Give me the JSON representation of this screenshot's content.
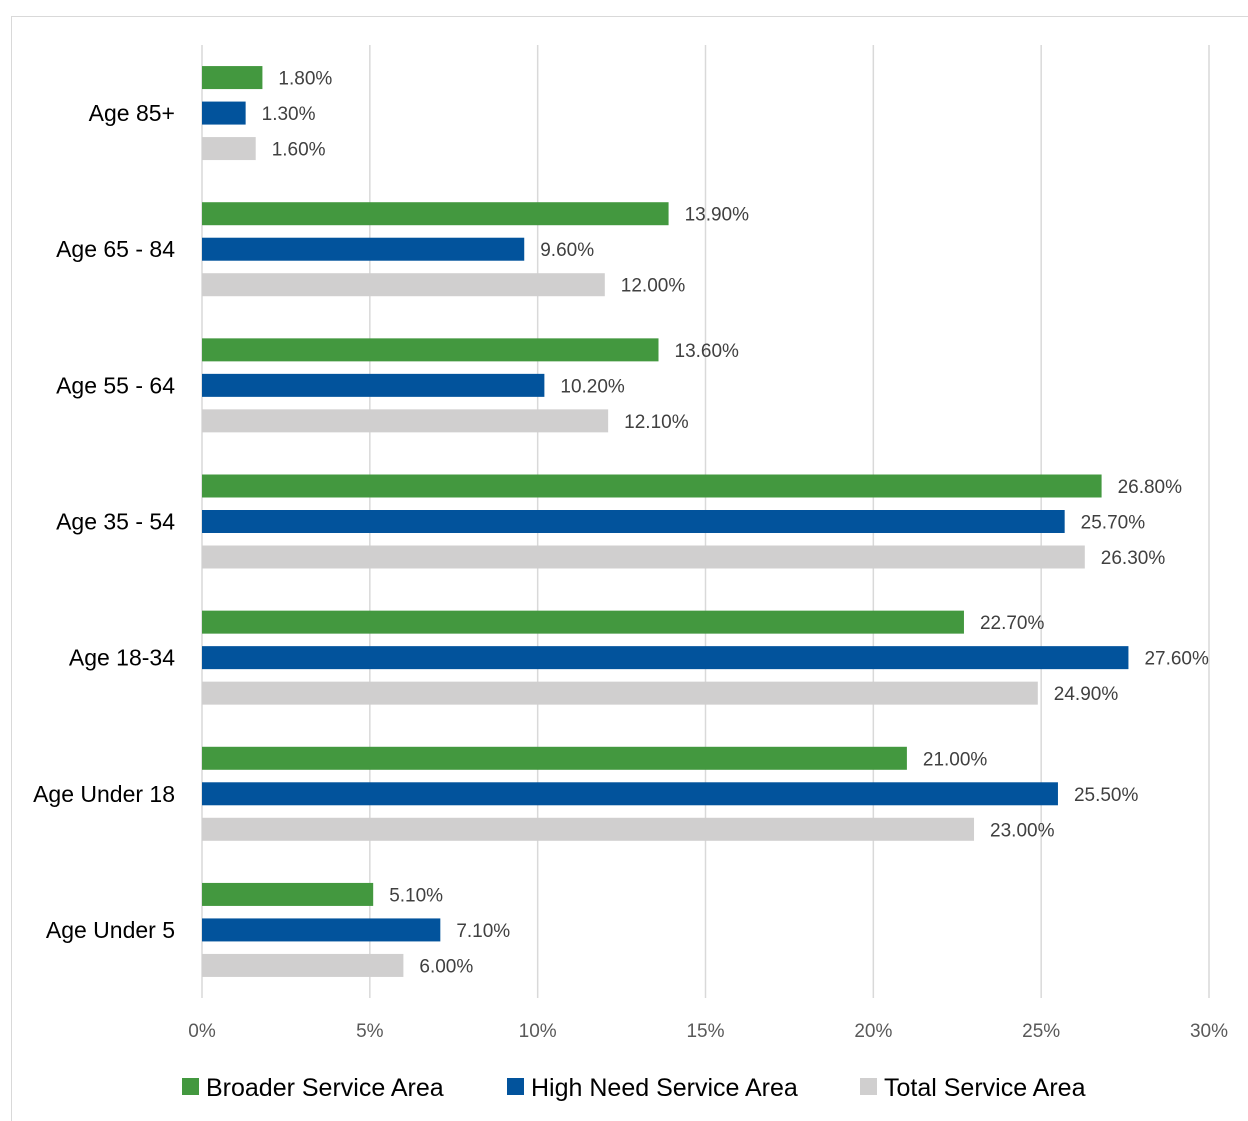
{
  "chart_data": {
    "type": "bar",
    "orientation": "horizontal",
    "categories": [
      "Age 85+",
      "Age 65 - 84",
      "Age 55 - 64",
      "Age 35 - 54",
      "Age 18-34",
      "Age Under 18",
      "Age Under 5"
    ],
    "series": [
      {
        "name": "Broader Service Area",
        "color": "#43983f",
        "values": [
          1.8,
          13.9,
          13.6,
          26.8,
          22.7,
          21.0,
          5.1
        ],
        "labels": [
          "1.80%",
          "13.90%",
          "13.60%",
          "26.80%",
          "22.70%",
          "21.00%",
          "5.10%"
        ]
      },
      {
        "name": "High Need Service Area",
        "color": "#02539c",
        "values": [
          1.3,
          9.6,
          10.2,
          25.7,
          27.6,
          25.5,
          7.1
        ],
        "labels": [
          "1.30%",
          "9.60%",
          "10.20%",
          "25.70%",
          "27.60%",
          "25.50%",
          "7.10%"
        ]
      },
      {
        "name": "Total Service Area",
        "color": "#d0cfcf",
        "values": [
          1.6,
          12.0,
          12.1,
          26.3,
          24.9,
          23.0,
          6.0
        ],
        "labels": [
          "1.60%",
          "12.00%",
          "12.10%",
          "26.30%",
          "24.90%",
          "23.00%",
          "6.00%"
        ]
      }
    ],
    "xlim": [
      0,
      30
    ],
    "xticks": [
      0,
      5,
      10,
      15,
      20,
      25,
      30
    ],
    "xtick_labels": [
      "0%",
      "5%",
      "10%",
      "15%",
      "20%",
      "25%",
      "30%"
    ],
    "grid": "vertical",
    "legend_position": "bottom",
    "gridline_color": "#d9d9d9"
  }
}
